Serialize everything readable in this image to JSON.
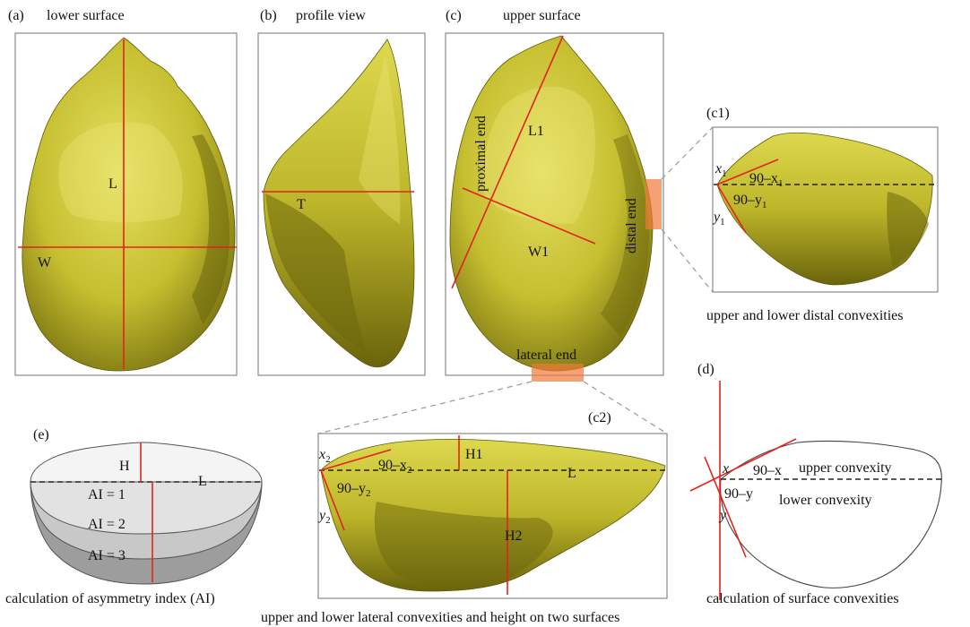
{
  "panels": {
    "a": {
      "tag": "(a)",
      "title": "lower surface",
      "L": "L",
      "W": "W"
    },
    "b": {
      "tag": "(b)",
      "title": "profile view",
      "T": "T"
    },
    "c": {
      "tag": "(c)",
      "title": "upper surface",
      "L1": "L1",
      "W1": "W1",
      "proximal": "proximal end",
      "distal": "distal end",
      "lateral": "lateral end"
    },
    "c1": {
      "tag": "(c1)",
      "x1": "x",
      "x1sub": "1",
      "y1": "y",
      "y1sub": "1",
      "a1": "90–x",
      "a1sub": "1",
      "a2": "90–y",
      "a2sub": "1",
      "caption": "upper and lower distal convexities"
    },
    "c2": {
      "tag": "(c2)",
      "x2": "x",
      "x2sub": "2",
      "y2": "y",
      "y2sub": "2",
      "a1": "90–x",
      "a1sub": "2",
      "a2": "90–y",
      "a2sub": "2",
      "H1": "H1",
      "H2": "H2",
      "L": "L",
      "caption": "upper and lower lateral convexities and height on two surfaces"
    },
    "d": {
      "tag": "(d)",
      "x": "x",
      "y": "y",
      "a1": "90–x",
      "a2": "90–y",
      "upper": "upper convexity",
      "lower": "lower convexity",
      "caption": "calculation of surface convexities"
    },
    "e": {
      "tag": "(e)",
      "H": "H",
      "L": "L",
      "ai1": "AI = 1",
      "ai2": "AI = 2",
      "ai3": "AI = 3",
      "caption": "calculation of asymmetry index (AI)"
    }
  },
  "colors": {
    "stone": "#c9c43a",
    "stone_dark": "#7a7410",
    "red": "#e2231a",
    "highlight": "#f07a3a"
  }
}
